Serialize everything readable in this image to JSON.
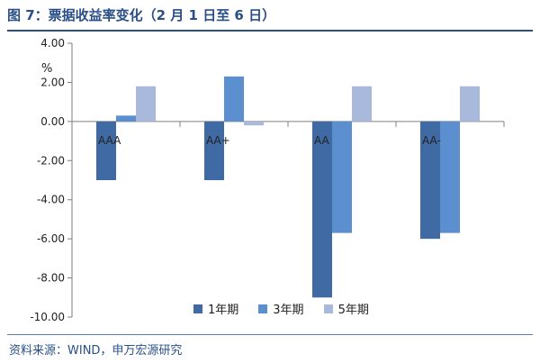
{
  "title": "图 7：票据收益率变化（2 月 1 日至 6 日）",
  "source": "资料来源：WIND，申万宏源研究",
  "colors": {
    "series1": "#3f6aa3",
    "series2": "#5b8fd0",
    "series3": "#a9b9dc",
    "axis": "#7f7f7f",
    "header": "#2a4f86"
  },
  "chart_data": {
    "type": "bar",
    "categories": [
      "AAA",
      "AA+",
      "AA",
      "AA-"
    ],
    "series": [
      {
        "name": "1年期",
        "values": [
          -3.0,
          -3.0,
          -9.0,
          -6.0
        ]
      },
      {
        "name": "3年期",
        "values": [
          0.3,
          2.3,
          -5.7,
          -5.7
        ]
      },
      {
        "name": "5年期",
        "values": [
          1.8,
          -0.2,
          1.8,
          1.8
        ]
      }
    ],
    "ylabel": "%",
    "ylim": [
      -10,
      4
    ],
    "yticks": [
      "4.00",
      "2.00",
      "0.00",
      "-2.00",
      "-4.00",
      "-6.00",
      "-8.00",
      "-10.00"
    ],
    "grid": false,
    "legend": "bottom"
  }
}
